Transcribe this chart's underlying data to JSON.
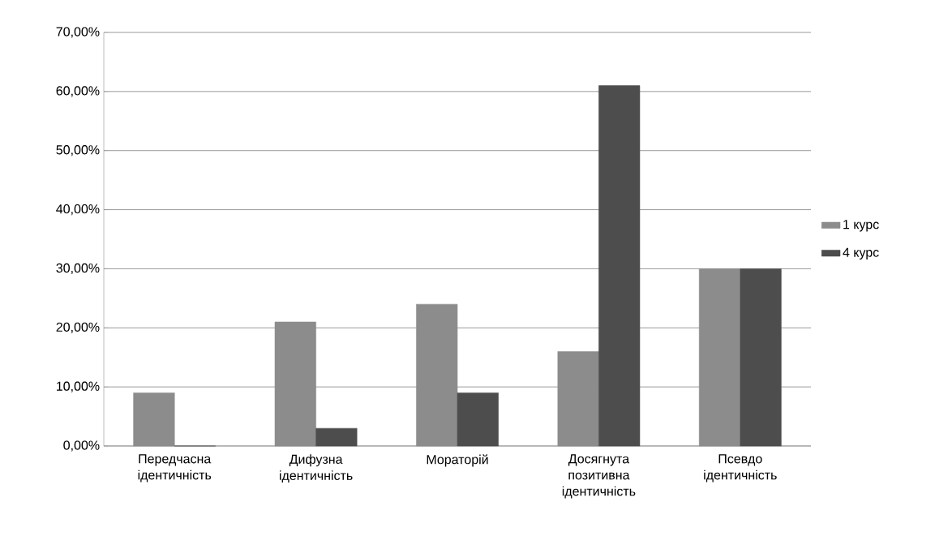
{
  "chart_data": {
    "type": "bar",
    "categories": [
      "Передчасна ідентичність",
      "Дифузна ідентичність",
      "Мораторій",
      "Досягнута позитивна ідентичність",
      "Псевдо ідентичність"
    ],
    "series": [
      {
        "name": "1 курс",
        "color": "#8c8c8c",
        "values": [
          9,
          21,
          24,
          16,
          30
        ]
      },
      {
        "name": "4 курс",
        "color": "#4d4d4d",
        "values": [
          0,
          3,
          9,
          61,
          30
        ]
      }
    ],
    "ylim": [
      0,
      70
    ],
    "yticks": [
      {
        "value": 0,
        "label": "0,00%"
      },
      {
        "value": 10,
        "label": "10,00%"
      },
      {
        "value": 20,
        "label": "20,00%"
      },
      {
        "value": 30,
        "label": "30,00%"
      },
      {
        "value": 40,
        "label": "40,00%"
      },
      {
        "value": 50,
        "label": "50,00%"
      },
      {
        "value": 60,
        "label": "60,00%"
      },
      {
        "value": 70,
        "label": "70,00%"
      }
    ],
    "grid": "y",
    "legend": "right"
  }
}
